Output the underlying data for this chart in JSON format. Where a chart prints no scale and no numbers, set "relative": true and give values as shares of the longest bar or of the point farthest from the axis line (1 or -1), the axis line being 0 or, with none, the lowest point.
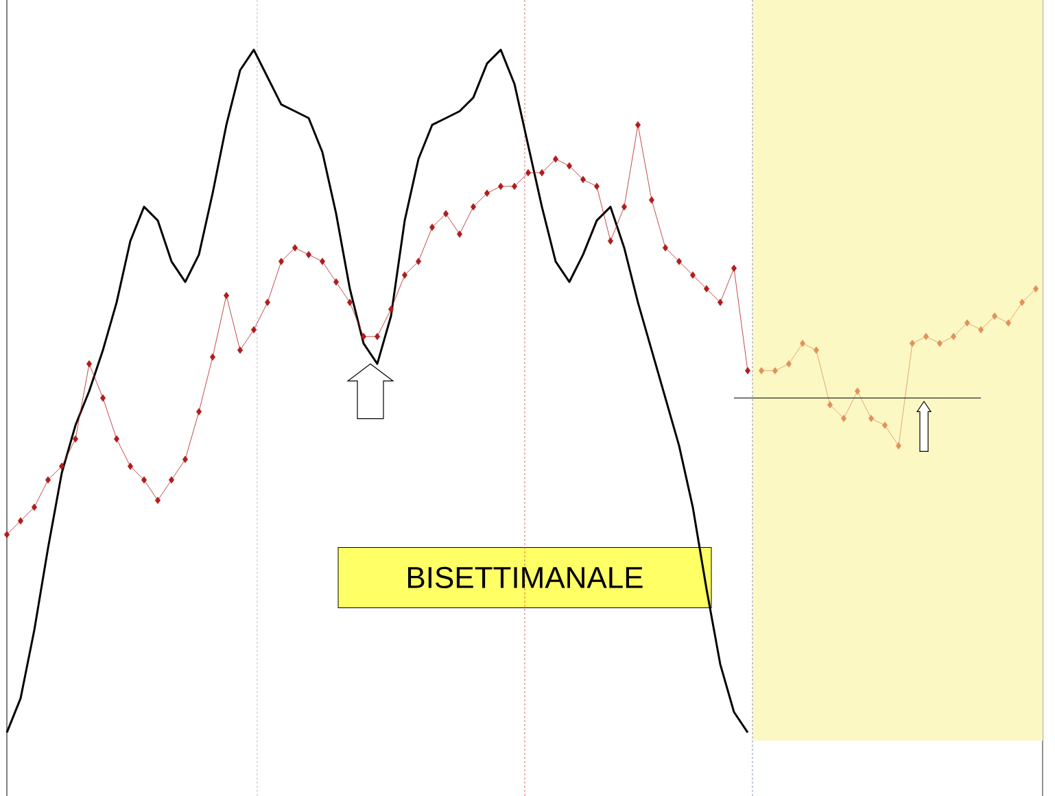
{
  "chart_data": {
    "type": "line",
    "relative": true,
    "categories": [
      null,
      null,
      null,
      null,
      null,
      null,
      null,
      null,
      null,
      null,
      null,
      null,
      null,
      null,
      null,
      null,
      null,
      null,
      null,
      null,
      null,
      null,
      null,
      null,
      null,
      null,
      null,
      null,
      null,
      null,
      null,
      null,
      null,
      null,
      null,
      null,
      null,
      null,
      null,
      null,
      null,
      null,
      null,
      null,
      null,
      null,
      null,
      null,
      null,
      null,
      null,
      null,
      null,
      null,
      null,
      null,
      null,
      null,
      null,
      null,
      null,
      null,
      null,
      null,
      null,
      null,
      null,
      null,
      null,
      null,
      null,
      null,
      null,
      null,
      null,
      null
    ],
    "series": [
      {
        "color": "#000000",
        "marker": "none",
        "values": [
          0,
          0.05,
          0.15,
          0.27,
          0.38,
          0.45,
          0.5,
          0.56,
          0.63,
          0.72,
          0.77,
          0.75,
          0.69,
          0.66,
          0.7,
          0.79,
          0.89,
          0.97,
          1.0,
          0.96,
          0.92,
          0.91,
          0.9,
          0.85,
          0.76,
          0.65,
          0.57,
          0.54,
          0.61,
          0.75,
          0.84,
          0.89,
          0.9,
          0.91,
          0.93,
          0.98,
          1.0,
          0.95,
          0.86,
          0.77,
          0.69,
          0.66,
          0.7,
          0.75,
          0.77,
          0.71,
          0.63,
          0.56,
          0.49,
          0.42,
          0.33,
          0.21,
          0.1,
          0.03,
          0,
          null,
          null,
          null,
          null,
          null,
          null,
          null,
          null,
          null,
          null,
          null,
          null,
          null,
          null,
          null,
          null,
          null,
          null,
          null,
          null,
          null
        ]
      },
      {
        "color": "#b01c1c",
        "marker": "diamond",
        "values": [
          0.29,
          0.31,
          0.33,
          0.37,
          0.39,
          0.43,
          0.54,
          0.49,
          0.43,
          0.39,
          0.37,
          0.34,
          0.37,
          0.4,
          0.47,
          0.55,
          0.64,
          0.56,
          0.59,
          0.63,
          0.69,
          0.71,
          0.7,
          0.69,
          0.66,
          0.63,
          0.58,
          0.58,
          0.62,
          0.67,
          0.69,
          0.74,
          0.76,
          0.73,
          0.77,
          0.79,
          0.8,
          0.8,
          0.82,
          0.82,
          0.84,
          0.83,
          0.81,
          0.8,
          0.72,
          0.77,
          0.89,
          0.78,
          0.71,
          0.69,
          0.67,
          0.65,
          0.63,
          0.68,
          0.53,
          null,
          null,
          null,
          null,
          null,
          null,
          null,
          null,
          null,
          null,
          null,
          null,
          null,
          null,
          null,
          null,
          null,
          null,
          null,
          null,
          null
        ]
      },
      {
        "color": "#e0925a",
        "marker": "diamond",
        "values": [
          null,
          null,
          null,
          null,
          null,
          null,
          null,
          null,
          null,
          null,
          null,
          null,
          null,
          null,
          null,
          null,
          null,
          null,
          null,
          null,
          null,
          null,
          null,
          null,
          null,
          null,
          null,
          null,
          null,
          null,
          null,
          null,
          null,
          null,
          null,
          null,
          null,
          null,
          null,
          null,
          null,
          null,
          null,
          null,
          null,
          null,
          null,
          null,
          null,
          null,
          null,
          null,
          null,
          null,
          null,
          0.53,
          0.53,
          0.54,
          0.57,
          0.56,
          0.48,
          0.46,
          0.5,
          0.46,
          0.45,
          0.42,
          0.57,
          0.58,
          0.57,
          0.58,
          0.6,
          0.59,
          0.61,
          0.6,
          0.63,
          0.65
        ]
      },
      {
        "color": "#000000",
        "marker": "none",
        "values": [
          null,
          null,
          null,
          null,
          null,
          null,
          null,
          null,
          null,
          null,
          null,
          null,
          null,
          null,
          null,
          null,
          null,
          null,
          null,
          null,
          null,
          null,
          null,
          null,
          null,
          null,
          null,
          null,
          null,
          null,
          null,
          null,
          null,
          null,
          null,
          null,
          null,
          null,
          null,
          null,
          null,
          null,
          null,
          null,
          null,
          null,
          null,
          null,
          null,
          null,
          null,
          null,
          null,
          0.49,
          0.49,
          0.49,
          0.49,
          0.49,
          0.49,
          0.49,
          0.49,
          0.49,
          0.49,
          0.49,
          0.49,
          0.49,
          0.49,
          0.49,
          0.49,
          0.49,
          0.49,
          0.49,
          null,
          null,
          null,
          null
        ]
      }
    ],
    "annotations": [
      "BISETTIMANALE"
    ]
  }
}
